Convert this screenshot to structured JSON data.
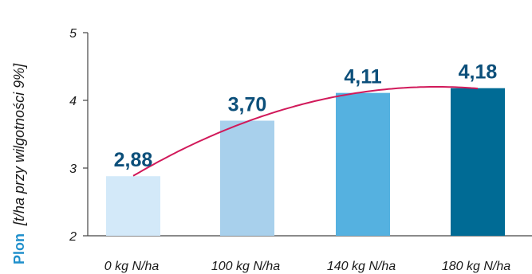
{
  "chart_data": {
    "type": "bar",
    "categories": [
      "0 kg N/ha",
      "100 kg N/ha",
      "140 kg N/ha",
      "180 kg N/ha"
    ],
    "values": [
      2.88,
      3.7,
      4.11,
      4.18
    ],
    "value_labels": [
      "2,88",
      "3,70",
      "4,11",
      "4,18"
    ],
    "bar_colors": [
      "#d3e9f9",
      "#a8d0ec",
      "#55b1e0",
      "#006b95"
    ],
    "ylim": [
      2,
      5
    ],
    "yticks": [
      2,
      3,
      4,
      5
    ],
    "ytick_labels": [
      "2",
      "3",
      "4",
      "5"
    ],
    "ylabel_bold": "Plon",
    "ylabel_rest": "[t/ha przy wilgotności 9%]",
    "trendline": true,
    "trendline_color": "#d1195a",
    "grid": false
  }
}
